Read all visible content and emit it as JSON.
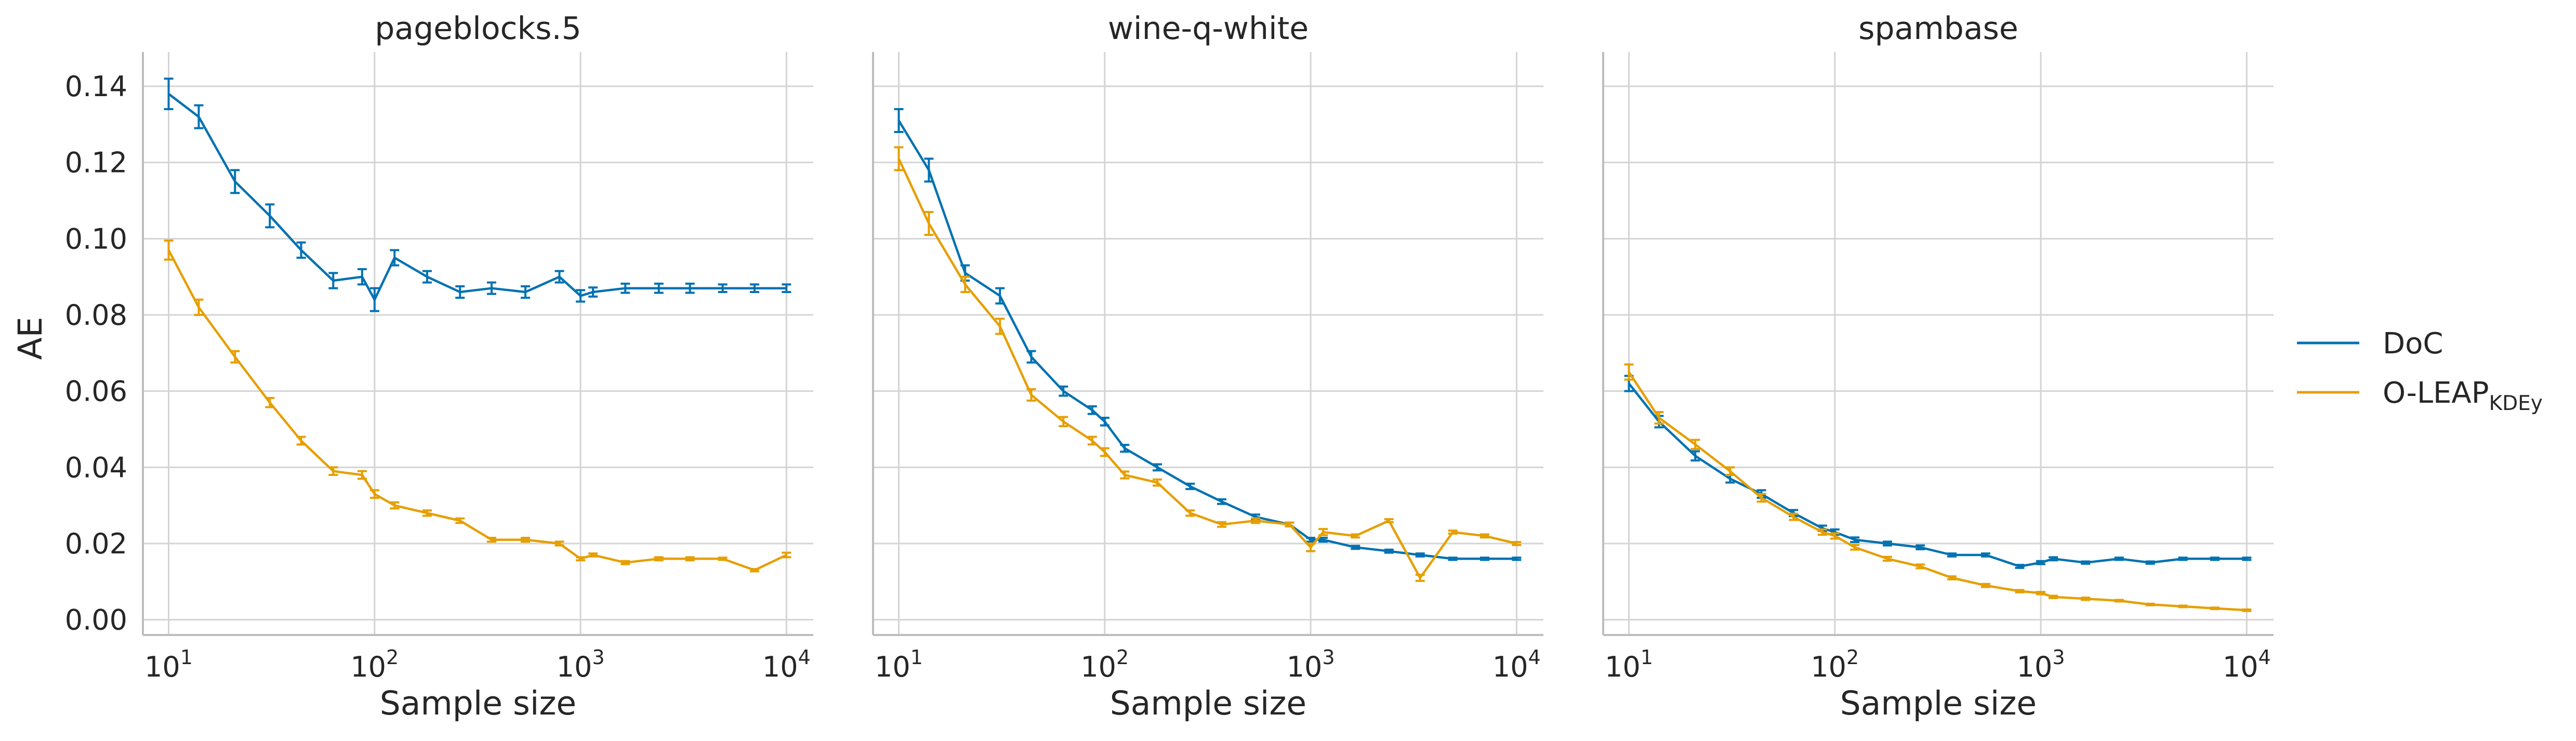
{
  "colors": {
    "DoC": "#0072b2",
    "O-LEAP": "#e69f00",
    "grid": "#d4d4d4",
    "spine": "#bdbdbd"
  },
  "legend": {
    "placement": "right",
    "entries": [
      {
        "label": "DoC"
      },
      {
        "label": "O-LEAP",
        "subscript": "KDEy"
      }
    ]
  },
  "chart_data": [
    {
      "type": "line",
      "title": "pageblocks.5",
      "xlabel": "Sample size",
      "ylabel": "AE",
      "xscale": "log",
      "xlim": [
        7.5,
        13500
      ],
      "ylim": [
        -0.004,
        0.149
      ],
      "xticks": [
        {
          "base": "10",
          "exp": "1"
        },
        {
          "base": "10",
          "exp": "2"
        },
        {
          "base": "10",
          "exp": "3"
        },
        {
          "base": "10",
          "exp": "4"
        }
      ],
      "yticks": [
        "0.00",
        "0.02",
        "0.04",
        "0.06",
        "0.08",
        "0.10",
        "0.12",
        "0.14"
      ],
      "grid": true,
      "x": [
        10,
        14,
        21,
        31,
        44,
        63,
        87,
        100,
        125,
        180,
        260,
        370,
        540,
        790,
        1000,
        1150,
        1650,
        2400,
        3400,
        4900,
        7000,
        10000
      ],
      "series": [
        {
          "name": "DoC",
          "values": [
            0.138,
            0.132,
            0.115,
            0.106,
            0.097,
            0.089,
            0.09,
            0.084,
            0.095,
            0.09,
            0.086,
            0.087,
            0.086,
            0.09,
            0.085,
            0.086,
            0.087,
            0.087,
            0.087,
            0.087,
            0.087,
            0.087
          ],
          "err": [
            0.004,
            0.003,
            0.003,
            0.003,
            0.002,
            0.002,
            0.002,
            0.003,
            0.002,
            0.0015,
            0.0015,
            0.0015,
            0.0015,
            0.0015,
            0.0015,
            0.0012,
            0.0012,
            0.0012,
            0.0012,
            0.001,
            0.001,
            0.001
          ]
        },
        {
          "name": "O-LEAP",
          "values": [
            0.097,
            0.082,
            0.069,
            0.057,
            0.047,
            0.039,
            0.038,
            0.033,
            0.03,
            0.028,
            0.026,
            0.021,
            0.021,
            0.02,
            0.016,
            0.017,
            0.015,
            0.016,
            0.016,
            0.016,
            0.013,
            0.017
          ],
          "err": [
            0.0025,
            0.002,
            0.0015,
            0.0012,
            0.001,
            0.001,
            0.001,
            0.001,
            0.0008,
            0.0007,
            0.0006,
            0.0005,
            0.0005,
            0.0005,
            0.0004,
            0.0004,
            0.0004,
            0.0004,
            0.0004,
            0.0003,
            0.0003,
            0.0006
          ]
        }
      ]
    },
    {
      "type": "line",
      "title": "wine-q-white",
      "xlabel": "Sample size",
      "ylabel": "",
      "xscale": "log",
      "xlim": [
        7.5,
        13500
      ],
      "ylim": [
        -0.004,
        0.149
      ],
      "xticks": [
        {
          "base": "10",
          "exp": "1"
        },
        {
          "base": "10",
          "exp": "2"
        },
        {
          "base": "10",
          "exp": "3"
        },
        {
          "base": "10",
          "exp": "4"
        }
      ],
      "yticks": [],
      "grid": true,
      "x": [
        10,
        14,
        21,
        31,
        44,
        63,
        87,
        100,
        125,
        180,
        260,
        370,
        540,
        790,
        1000,
        1150,
        1650,
        2400,
        3400,
        4900,
        7000,
        10000
      ],
      "series": [
        {
          "name": "DoC",
          "values": [
            0.131,
            0.118,
            0.091,
            0.085,
            0.069,
            0.06,
            0.055,
            0.052,
            0.045,
            0.04,
            0.035,
            0.031,
            0.027,
            0.025,
            0.021,
            0.021,
            0.019,
            0.018,
            0.017,
            0.016,
            0.016,
            0.016
          ],
          "err": [
            0.003,
            0.003,
            0.002,
            0.002,
            0.0015,
            0.0012,
            0.001,
            0.001,
            0.0009,
            0.0008,
            0.0007,
            0.0006,
            0.0006,
            0.0005,
            0.0005,
            0.0005,
            0.0004,
            0.0004,
            0.0004,
            0.0003,
            0.0003,
            0.0003
          ]
        },
        {
          "name": "O-LEAP",
          "values": [
            0.121,
            0.104,
            0.088,
            0.077,
            0.059,
            0.052,
            0.047,
            0.044,
            0.038,
            0.036,
            0.028,
            0.025,
            0.026,
            0.025,
            0.019,
            0.023,
            0.022,
            0.026,
            0.011,
            0.023,
            0.022,
            0.02
          ],
          "err": [
            0.003,
            0.003,
            0.002,
            0.002,
            0.0015,
            0.0012,
            0.001,
            0.001,
            0.0009,
            0.0008,
            0.0007,
            0.0006,
            0.0006,
            0.0005,
            0.001,
            0.0008,
            0.0004,
            0.0004,
            0.0008,
            0.0004,
            0.0004,
            0.0004
          ]
        }
      ]
    },
    {
      "type": "line",
      "title": "spambase",
      "xlabel": "Sample size",
      "ylabel": "",
      "xscale": "log",
      "xlim": [
        7.5,
        13500
      ],
      "ylim": [
        -0.004,
        0.149
      ],
      "xticks": [
        {
          "base": "10",
          "exp": "1"
        },
        {
          "base": "10",
          "exp": "2"
        },
        {
          "base": "10",
          "exp": "3"
        },
        {
          "base": "10",
          "exp": "4"
        }
      ],
      "yticks": [],
      "grid": true,
      "x": [
        10,
        14,
        21,
        31,
        44,
        63,
        87,
        100,
        125,
        180,
        260,
        370,
        540,
        790,
        1000,
        1150,
        1650,
        2400,
        3400,
        4900,
        7000,
        10000
      ],
      "series": [
        {
          "name": "DoC",
          "values": [
            0.062,
            0.052,
            0.043,
            0.037,
            0.033,
            0.028,
            0.024,
            0.023,
            0.021,
            0.02,
            0.019,
            0.017,
            0.017,
            0.014,
            0.015,
            0.016,
            0.015,
            0.016,
            0.015,
            0.016,
            0.016,
            0.016
          ],
          "err": [
            0.002,
            0.0015,
            0.0012,
            0.001,
            0.001,
            0.0008,
            0.0007,
            0.0007,
            0.0006,
            0.0005,
            0.0005,
            0.0004,
            0.0004,
            0.0004,
            0.0004,
            0.0004,
            0.0003,
            0.0003,
            0.0003,
            0.0003,
            0.0003,
            0.0003
          ]
        },
        {
          "name": "O-LEAP",
          "values": [
            0.065,
            0.053,
            0.046,
            0.039,
            0.032,
            0.027,
            0.023,
            0.022,
            0.019,
            0.016,
            0.014,
            0.011,
            0.009,
            0.0075,
            0.007,
            0.006,
            0.0055,
            0.005,
            0.004,
            0.0035,
            0.003,
            0.0025
          ],
          "err": [
            0.002,
            0.0015,
            0.0012,
            0.001,
            0.001,
            0.0008,
            0.0007,
            0.0007,
            0.0006,
            0.0005,
            0.0005,
            0.0004,
            0.0004,
            0.0003,
            0.0003,
            0.0003,
            0.0003,
            0.0002,
            0.0002,
            0.0002,
            0.0002,
            0.0002
          ]
        }
      ]
    }
  ]
}
